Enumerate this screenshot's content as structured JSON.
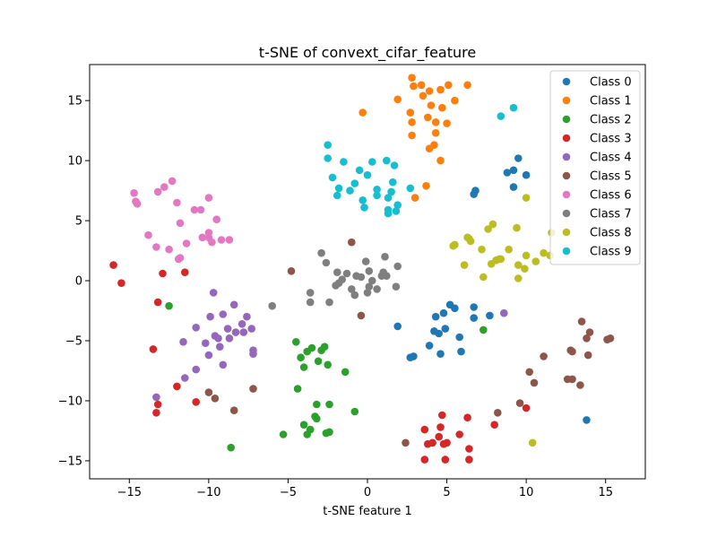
{
  "chart_data": {
    "type": "scatter",
    "title": "t-SNE of convext_cifar_feature",
    "xlabel": "t-SNE feature 1",
    "ylabel": "",
    "xlim": [
      -17.5,
      17.5
    ],
    "ylim": [
      -16.5,
      18.0
    ],
    "xticks": [
      -15,
      -10,
      -5,
      0,
      5,
      10,
      15
    ],
    "yticks": [
      -15,
      -10,
      -5,
      0,
      5,
      10,
      15
    ],
    "grid": false,
    "legend_position": "top-right",
    "series": [
      {
        "name": "Class 0",
        "color": "#1f77b4",
        "points": [
          [
            9.5,
            10.2
          ],
          [
            9.2,
            9.2
          ],
          [
            8.8,
            9.0
          ],
          [
            10.0,
            8.8
          ],
          [
            9.2,
            7.8
          ],
          [
            6.8,
            7.5
          ],
          [
            6.7,
            7.2
          ],
          [
            5.2,
            -2.0
          ],
          [
            5.5,
            -2.3
          ],
          [
            4.8,
            -2.7
          ],
          [
            4.3,
            -3.0
          ],
          [
            6.7,
            -2.2
          ],
          [
            6.7,
            -3.1
          ],
          [
            7.7,
            -2.9
          ],
          [
            1.9,
            -3.8
          ],
          [
            4.2,
            -4.2
          ],
          [
            4.5,
            -4.4
          ],
          [
            4.9,
            -4.0
          ],
          [
            5.8,
            -4.7
          ],
          [
            3.9,
            -5.4
          ],
          [
            5.9,
            -5.9
          ],
          [
            4.6,
            -6.1
          ],
          [
            2.9,
            -6.3
          ],
          [
            2.7,
            -6.4
          ],
          [
            13.8,
            -11.6
          ]
        ]
      },
      {
        "name": "Class 1",
        "color": "#ff7f0e",
        "points": [
          [
            2.8,
            16.9
          ],
          [
            2.9,
            16.2
          ],
          [
            3.4,
            16.3
          ],
          [
            3.9,
            15.8
          ],
          [
            5.1,
            16.3
          ],
          [
            6.3,
            16.3
          ],
          [
            4.6,
            15.9
          ],
          [
            1.9,
            15.1
          ],
          [
            3.5,
            15.4
          ],
          [
            4.0,
            14.6
          ],
          [
            5.5,
            15.0
          ],
          [
            4.7,
            14.4
          ],
          [
            -0.3,
            14.0
          ],
          [
            2.7,
            14.0
          ],
          [
            3.8,
            13.6
          ],
          [
            4.3,
            13.2
          ],
          [
            5.0,
            13.1
          ],
          [
            2.8,
            13.2
          ],
          [
            4.3,
            12.3
          ],
          [
            2.8,
            12.1
          ],
          [
            3.9,
            11.0
          ],
          [
            4.2,
            11.3
          ],
          [
            4.6,
            10.0
          ],
          [
            3.7,
            7.9
          ],
          [
            3.0,
            6.9
          ]
        ]
      },
      {
        "name": "Class 2",
        "color": "#2ca02c",
        "points": [
          [
            -12.5,
            -2.1
          ],
          [
            -4.5,
            -5.1
          ],
          [
            -3.5,
            -5.6
          ],
          [
            -2.7,
            -5.5
          ],
          [
            -3.8,
            -5.9
          ],
          [
            -2.9,
            -5.8
          ],
          [
            -4.2,
            -6.4
          ],
          [
            -3.1,
            -6.7
          ],
          [
            -4.0,
            -7.2
          ],
          [
            -2.5,
            -7.0
          ],
          [
            -1.4,
            -7.6
          ],
          [
            -4.4,
            -9.0
          ],
          [
            -3.2,
            -10.3
          ],
          [
            -2.4,
            -10.3
          ],
          [
            -3.3,
            -11.3
          ],
          [
            -3.2,
            -11.5
          ],
          [
            -0.8,
            -10.9
          ],
          [
            -4.0,
            -12.0
          ],
          [
            -3.6,
            -12.4
          ],
          [
            -2.6,
            -12.7
          ],
          [
            -2.4,
            -12.6
          ],
          [
            -3.8,
            -12.8
          ],
          [
            -5.3,
            -12.8
          ],
          [
            -8.6,
            -13.9
          ],
          [
            7.3,
            -4.1
          ]
        ]
      },
      {
        "name": "Class 3",
        "color": "#d62728",
        "points": [
          [
            -16.0,
            1.3
          ],
          [
            -15.5,
            -0.2
          ],
          [
            -12.9,
            0.6
          ],
          [
            -11.5,
            0.7
          ],
          [
            -13.2,
            -1.8
          ],
          [
            -13.5,
            -5.7
          ],
          [
            -12.0,
            -8.8
          ],
          [
            -10.8,
            -10.1
          ],
          [
            -13.2,
            -10.3
          ],
          [
            -13.3,
            -11.0
          ],
          [
            4.7,
            -11.2
          ],
          [
            6.3,
            -11.4
          ],
          [
            3.6,
            -12.4
          ],
          [
            4.6,
            -12.2
          ],
          [
            5.8,
            -12.8
          ],
          [
            4.5,
            -13.0
          ],
          [
            4.1,
            -13.5
          ],
          [
            5.0,
            -13.5
          ],
          [
            3.8,
            -13.6
          ],
          [
            4.8,
            -13.6
          ],
          [
            6.4,
            -14.0
          ],
          [
            3.6,
            -14.9
          ],
          [
            4.9,
            -14.9
          ],
          [
            6.4,
            -14.9
          ],
          [
            10.0,
            -10.6
          ],
          [
            8.0,
            -12.0
          ]
        ]
      },
      {
        "name": "Class 4",
        "color": "#9467bd",
        "points": [
          [
            -9.7,
            -1.0
          ],
          [
            -8.4,
            -2.0
          ],
          [
            -9.9,
            -3.0
          ],
          [
            -9.1,
            -2.8
          ],
          [
            -7.6,
            -3.0
          ],
          [
            -10.8,
            -3.9
          ],
          [
            -8.8,
            -4.0
          ],
          [
            -7.9,
            -3.6
          ],
          [
            -7.3,
            -4.0
          ],
          [
            -8.3,
            -4.3
          ],
          [
            -7.8,
            -4.3
          ],
          [
            -8.7,
            -4.8
          ],
          [
            -9.6,
            -4.6
          ],
          [
            -9.4,
            -4.8
          ],
          [
            -10.2,
            -5.2
          ],
          [
            -11.6,
            -5.1
          ],
          [
            -9.3,
            -5.5
          ],
          [
            -7.2,
            -5.8
          ],
          [
            -7.2,
            -6.1
          ],
          [
            -10.0,
            -6.2
          ],
          [
            -9.1,
            -7.0
          ],
          [
            -10.8,
            -7.4
          ],
          [
            -11.5,
            -8.1
          ],
          [
            -13.3,
            -9.7
          ],
          [
            8.6,
            -2.7
          ]
        ]
      },
      {
        "name": "Class 5",
        "color": "#8c564b",
        "points": [
          [
            -1.0,
            3.2
          ],
          [
            -4.8,
            0.8
          ],
          [
            -0.4,
            -2.9
          ],
          [
            -7.2,
            -9.0
          ],
          [
            -10.0,
            -9.3
          ],
          [
            -9.6,
            -9.8
          ],
          [
            -8.4,
            -10.8
          ],
          [
            2.4,
            -13.5
          ],
          [
            8.2,
            -11.0
          ],
          [
            9.6,
            -10.2
          ],
          [
            10.5,
            -8.5
          ],
          [
            10.2,
            -7.6
          ],
          [
            11.1,
            -6.3
          ],
          [
            12.8,
            -5.8
          ],
          [
            12.9,
            -5.9
          ],
          [
            13.5,
            -3.4
          ],
          [
            14.0,
            -4.3
          ],
          [
            13.8,
            -4.8
          ],
          [
            13.9,
            -6.2
          ],
          [
            15.1,
            -4.9
          ],
          [
            15.3,
            -4.8
          ],
          [
            12.6,
            -8.2
          ],
          [
            12.9,
            -8.2
          ],
          [
            13.4,
            -8.7
          ]
        ]
      },
      {
        "name": "Class 6",
        "color": "#e377c2",
        "points": [
          [
            -12.3,
            8.3
          ],
          [
            -12.8,
            7.8
          ],
          [
            -13.2,
            7.4
          ],
          [
            -14.7,
            7.3
          ],
          [
            -14.6,
            6.6
          ],
          [
            -14.5,
            6.4
          ],
          [
            -12.0,
            6.5
          ],
          [
            -10.0,
            6.9
          ],
          [
            -10.9,
            5.9
          ],
          [
            -10.5,
            5.9
          ],
          [
            -9.5,
            5.1
          ],
          [
            -11.8,
            4.8
          ],
          [
            -10.0,
            4.0
          ],
          [
            -13.8,
            3.8
          ],
          [
            -10.4,
            3.6
          ],
          [
            -10.0,
            3.6
          ],
          [
            -9.8,
            3.2
          ],
          [
            -9.2,
            3.4
          ],
          [
            -8.7,
            3.4
          ],
          [
            -11.4,
            3.1
          ],
          [
            -13.3,
            2.8
          ],
          [
            -12.5,
            2.6
          ],
          [
            -11.8,
            1.9
          ],
          [
            -11.9,
            1.8
          ]
        ]
      },
      {
        "name": "Class 7",
        "color": "#7f7f7f",
        "points": [
          [
            -2.9,
            2.3
          ],
          [
            -2.6,
            1.5
          ],
          [
            -0.1,
            1.6
          ],
          [
            1.1,
            2.0
          ],
          [
            -1.9,
            0.7
          ],
          [
            -1.3,
            0.6
          ],
          [
            0.1,
            0.8
          ],
          [
            1.0,
            0.7
          ],
          [
            1.9,
            1.2
          ],
          [
            -0.7,
            0.4
          ],
          [
            -1.6,
            0.1
          ],
          [
            -0.4,
            0.3
          ],
          [
            0.3,
            0.0
          ],
          [
            0.9,
            0.4
          ],
          [
            1.2,
            0.4
          ],
          [
            -1.8,
            -0.2
          ],
          [
            -2.0,
            -0.4
          ],
          [
            -1.0,
            -0.7
          ],
          [
            0.1,
            -0.5
          ],
          [
            0.6,
            -0.7
          ],
          [
            1.8,
            -0.5
          ],
          [
            -3.6,
            -1.0
          ],
          [
            -0.8,
            -1.2
          ],
          [
            -3.6,
            -1.8
          ],
          [
            -2.4,
            -1.8
          ],
          [
            -6.0,
            -2.1
          ],
          [
            0.0,
            -1.0
          ]
        ]
      },
      {
        "name": "Class 8",
        "color": "#bcbd22",
        "points": [
          [
            7.9,
            4.7
          ],
          [
            7.6,
            4.3
          ],
          [
            9.4,
            4.4
          ],
          [
            11.6,
            4.0
          ],
          [
            6.3,
            3.6
          ],
          [
            6.4,
            3.5
          ],
          [
            6.5,
            3.3
          ],
          [
            5.5,
            3.0
          ],
          [
            5.4,
            2.9
          ],
          [
            7.2,
            2.6
          ],
          [
            8.9,
            2.6
          ],
          [
            10.0,
            2.1
          ],
          [
            11.1,
            2.3
          ],
          [
            11.5,
            2.1
          ],
          [
            8.4,
            1.8
          ],
          [
            8.1,
            1.7
          ],
          [
            8.3,
            1.8
          ],
          [
            6.1,
            1.3
          ],
          [
            7.8,
            1.4
          ],
          [
            9.5,
            1.3
          ],
          [
            10.6,
            1.6
          ],
          [
            9.9,
            1.0
          ],
          [
            7.3,
            0.3
          ],
          [
            9.5,
            0.2
          ],
          [
            10.0,
            6.9
          ],
          [
            10.4,
            -13.5
          ]
        ]
      },
      {
        "name": "Class 9",
        "color": "#17becf",
        "points": [
          [
            9.2,
            14.4
          ],
          [
            8.4,
            13.7
          ],
          [
            -2.5,
            11.3
          ],
          [
            -2.5,
            10.2
          ],
          [
            -1.5,
            9.9
          ],
          [
            0.3,
            9.9
          ],
          [
            1.2,
            10.0
          ],
          [
            1.7,
            9.6
          ],
          [
            -0.5,
            9.2
          ],
          [
            0.0,
            8.8
          ],
          [
            -2.2,
            8.6
          ],
          [
            -0.8,
            8.1
          ],
          [
            1.6,
            8.2
          ],
          [
            2.7,
            7.7
          ],
          [
            -1.8,
            7.7
          ],
          [
            -1.1,
            7.5
          ],
          [
            0.6,
            7.6
          ],
          [
            1.5,
            7.4
          ],
          [
            -1.9,
            7.1
          ],
          [
            0.6,
            7.1
          ],
          [
            -0.3,
            6.7
          ],
          [
            1.3,
            6.9
          ],
          [
            -0.2,
            6.1
          ],
          [
            1.3,
            5.9
          ],
          [
            1.9,
            6.3
          ],
          [
            1.8,
            5.8
          ],
          [
            1.3,
            5.6
          ]
        ]
      }
    ]
  }
}
